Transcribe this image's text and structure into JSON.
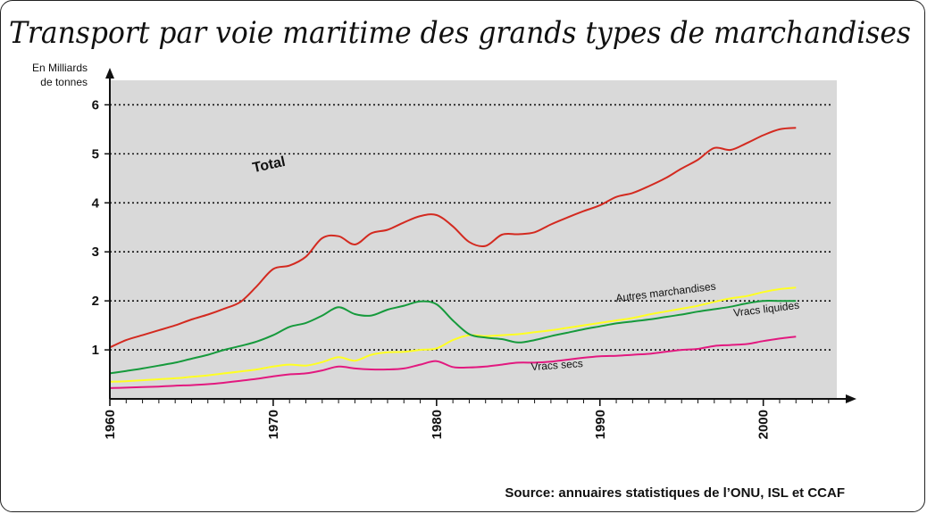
{
  "chart_data": {
    "type": "line",
    "title": "Transport par voie maritime des grands types de marchandises",
    "ylabel_line1": "En Milliards",
    "ylabel_line2": "de tonnes",
    "source": "Source: annuaires statistiques de l’ONU, ISL et CCAF",
    "xlim": [
      1960,
      2004.5
    ],
    "ylim": [
      0,
      6.5
    ],
    "x_ticks": [
      1960,
      1970,
      1980,
      1990,
      2000
    ],
    "y_ticks": [
      1,
      2,
      3,
      4,
      5,
      6
    ],
    "grid": "horizontal dotted",
    "series": [
      {
        "name": "Total",
        "color": "#d32a20",
        "x": [
          1960,
          1961,
          1962,
          1963,
          1964,
          1965,
          1966,
          1967,
          1968,
          1969,
          1970,
          1971,
          1972,
          1973,
          1974,
          1975,
          1976,
          1977,
          1978,
          1979,
          1980,
          1981,
          1982,
          1983,
          1984,
          1985,
          1986,
          1987,
          1988,
          1989,
          1990,
          1991,
          1992,
          1993,
          1994,
          1995,
          1996,
          1997,
          1998,
          1999,
          2000,
          2001,
          2002
        ],
        "values": [
          1.05,
          1.2,
          1.3,
          1.4,
          1.5,
          1.62,
          1.72,
          1.84,
          1.98,
          2.3,
          2.65,
          2.72,
          2.9,
          3.28,
          3.32,
          3.15,
          3.38,
          3.45,
          3.6,
          3.73,
          3.75,
          3.52,
          3.2,
          3.12,
          3.35,
          3.36,
          3.4,
          3.56,
          3.7,
          3.83,
          3.95,
          4.12,
          4.2,
          4.34,
          4.5,
          4.7,
          4.88,
          5.12,
          5.08,
          5.22,
          5.38,
          5.5,
          5.53
        ]
      },
      {
        "name": "Vracs liquides",
        "color": "#169a3c",
        "x": [
          1960,
          1961,
          1962,
          1963,
          1964,
          1965,
          1966,
          1967,
          1968,
          1969,
          1970,
          1971,
          1972,
          1973,
          1974,
          1975,
          1976,
          1977,
          1978,
          1979,
          1980,
          1981,
          1982,
          1983,
          1984,
          1985,
          1986,
          1987,
          1988,
          1989,
          1990,
          1991,
          1992,
          1993,
          1994,
          1995,
          1996,
          1997,
          1998,
          1999,
          2000,
          2001,
          2002
        ],
        "values": [
          0.52,
          0.57,
          0.62,
          0.68,
          0.74,
          0.82,
          0.9,
          1.0,
          1.08,
          1.17,
          1.3,
          1.47,
          1.55,
          1.7,
          1.87,
          1.73,
          1.7,
          1.82,
          1.9,
          1.99,
          1.93,
          1.6,
          1.32,
          1.25,
          1.22,
          1.15,
          1.2,
          1.28,
          1.35,
          1.42,
          1.48,
          1.54,
          1.58,
          1.62,
          1.67,
          1.72,
          1.78,
          1.83,
          1.88,
          1.95,
          2.0,
          2.0,
          2.0
        ]
      },
      {
        "name": "Autres marchandises",
        "color": "#ffff22",
        "x": [
          1960,
          1961,
          1962,
          1963,
          1964,
          1965,
          1966,
          1967,
          1968,
          1969,
          1970,
          1971,
          1972,
          1973,
          1974,
          1975,
          1976,
          1977,
          1978,
          1979,
          1980,
          1981,
          1982,
          1983,
          1984,
          1985,
          1986,
          1987,
          1988,
          1989,
          1990,
          1991,
          1992,
          1993,
          1994,
          1995,
          1996,
          1997,
          1998,
          1999,
          2000,
          2001,
          2002
        ],
        "values": [
          0.35,
          0.36,
          0.38,
          0.4,
          0.42,
          0.45,
          0.48,
          0.52,
          0.56,
          0.6,
          0.66,
          0.7,
          0.68,
          0.75,
          0.85,
          0.78,
          0.9,
          0.95,
          0.96,
          1.0,
          1.03,
          1.2,
          1.3,
          1.28,
          1.3,
          1.32,
          1.36,
          1.4,
          1.45,
          1.5,
          1.55,
          1.6,
          1.65,
          1.72,
          1.78,
          1.84,
          1.9,
          1.98,
          2.05,
          2.1,
          2.18,
          2.24,
          2.27
        ]
      },
      {
        "name": "Vracs secs",
        "color": "#e2197f",
        "x": [
          1960,
          1961,
          1962,
          1963,
          1964,
          1965,
          1966,
          1967,
          1968,
          1969,
          1970,
          1971,
          1972,
          1973,
          1974,
          1975,
          1976,
          1977,
          1978,
          1979,
          1980,
          1981,
          1982,
          1983,
          1984,
          1985,
          1986,
          1987,
          1988,
          1989,
          1990,
          1991,
          1992,
          1993,
          1994,
          1995,
          1996,
          1997,
          1998,
          1999,
          2000,
          2001,
          2002
        ],
        "values": [
          0.22,
          0.23,
          0.24,
          0.25,
          0.27,
          0.28,
          0.3,
          0.33,
          0.37,
          0.41,
          0.46,
          0.5,
          0.52,
          0.58,
          0.66,
          0.62,
          0.6,
          0.6,
          0.62,
          0.7,
          0.77,
          0.65,
          0.64,
          0.66,
          0.7,
          0.74,
          0.74,
          0.76,
          0.8,
          0.84,
          0.87,
          0.88,
          0.9,
          0.92,
          0.96,
          1.0,
          1.02,
          1.08,
          1.1,
          1.12,
          1.18,
          1.23,
          1.27
        ]
      }
    ]
  }
}
